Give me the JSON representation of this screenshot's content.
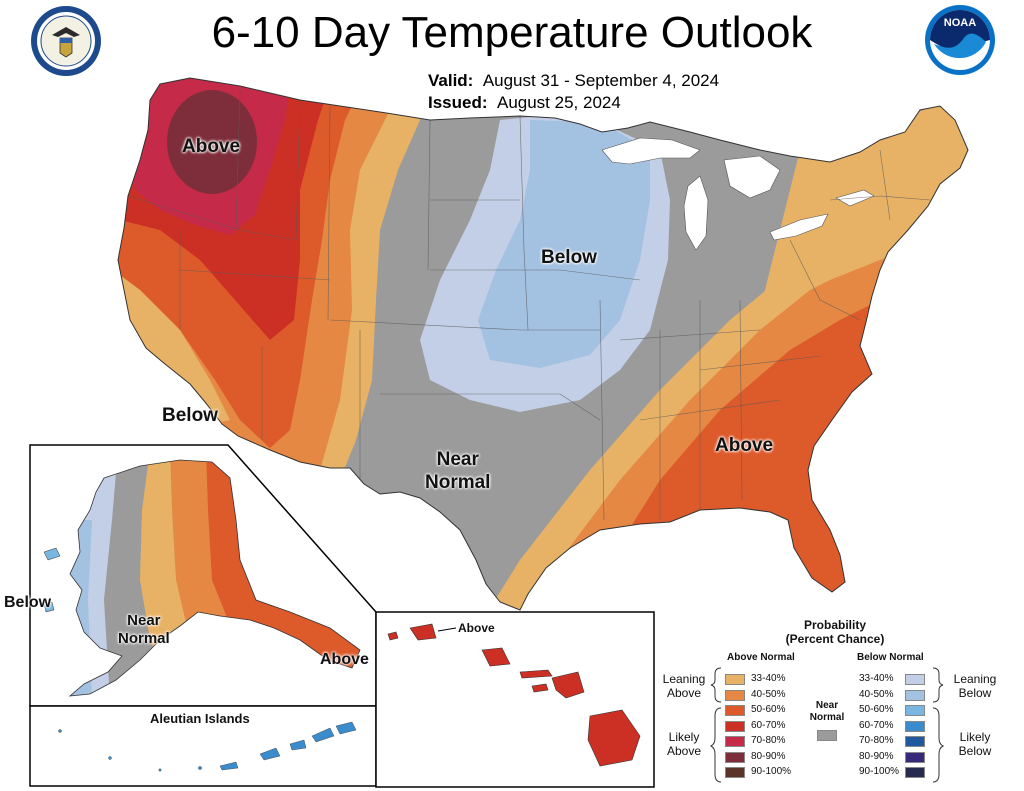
{
  "header": {
    "title": "6-10 Day Temperature Outlook",
    "valid_label": "Valid:",
    "valid_value": "August 31 - September 4, 2024",
    "issued_label": "Issued:",
    "issued_value": "August 25, 2024"
  },
  "logos": {
    "left": "Department of Commerce seal",
    "right": "NOAA logo",
    "noaa_text": "NOAA"
  },
  "map_labels": {
    "conus_above_nw": "Above",
    "conus_below_center": "Below",
    "conus_below_sw": "Below",
    "conus_near_normal": [
      "Near",
      "Normal"
    ],
    "conus_above_se": "Above",
    "alaska_below": "Below",
    "alaska_near_normal": [
      "Near",
      "Normal"
    ],
    "alaska_above": "Above",
    "aleutian_title": "Aleutian Islands",
    "hawaii_above": "Above"
  },
  "legend": {
    "title_line1": "Probability",
    "title_line2": "(Percent Chance)",
    "above_head": "Above Normal",
    "below_head": "Below Normal",
    "near_label_line1": "Near",
    "near_label_line2": "Normal",
    "leaning_above": [
      "Leaning",
      "Above"
    ],
    "likely_above": [
      "Likely",
      "Above"
    ],
    "leaning_below": [
      "Leaning",
      "Below"
    ],
    "likely_below": [
      "Likely",
      "Below"
    ],
    "above_categories": [
      {
        "label": "33-40%",
        "color": "#e8b266"
      },
      {
        "label": "40-50%",
        "color": "#e58843"
      },
      {
        "label": "50-60%",
        "color": "#dd5a2b"
      },
      {
        "label": "60-70%",
        "color": "#cc3024"
      },
      {
        "label": "70-80%",
        "color": "#c52a48"
      },
      {
        "label": "80-90%",
        "color": "#7e2e3a"
      },
      {
        "label": "90-100%",
        "color": "#5c3328"
      }
    ],
    "below_categories": [
      {
        "label": "33-40%",
        "color": "#c2cfe6"
      },
      {
        "label": "40-50%",
        "color": "#a3c1e0"
      },
      {
        "label": "50-60%",
        "color": "#79b6e0"
      },
      {
        "label": "60-70%",
        "color": "#3a8ccc"
      },
      {
        "label": "70-80%",
        "color": "#1f5a9e"
      },
      {
        "label": "80-90%",
        "color": "#37287a"
      },
      {
        "label": "90-100%",
        "color": "#252a4e"
      }
    ],
    "near_color": "#9b9b9b"
  }
}
